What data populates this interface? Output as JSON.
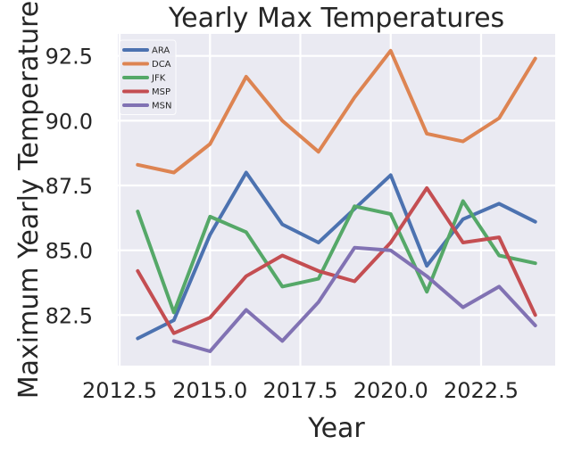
{
  "chart_data": {
    "type": "line",
    "title": "Yearly Max Temperatures",
    "xlabel": "Year",
    "ylabel": "Maximum Yearly Temperature",
    "xlim": [
      2012.45,
      2024.55
    ],
    "ylim": [
      80.55,
      93.35
    ],
    "xticks": [
      2012.5,
      2015.0,
      2017.5,
      2020.0,
      2022.5
    ],
    "xtick_labels": [
      "2012.5",
      "2015.0",
      "2017.5",
      "2020.0",
      "2022.5"
    ],
    "yticks": [
      82.5,
      85.0,
      87.5,
      90.0,
      92.5
    ],
    "ytick_labels": [
      "82.5",
      "85.0",
      "87.5",
      "90.0",
      "92.5"
    ],
    "grid": true,
    "legend_position": "top-left",
    "background": "#EAEAF2",
    "series": [
      {
        "name": "ARA",
        "color": "#4C72B0",
        "points": [
          [
            2013,
            81.6
          ],
          [
            2014,
            82.3
          ],
          [
            2015,
            85.6
          ],
          [
            2016,
            88.0
          ],
          [
            2017,
            86.0
          ],
          [
            2018,
            85.3
          ],
          [
            2019,
            86.6
          ],
          [
            2020,
            87.9
          ],
          [
            2021,
            84.4
          ],
          [
            2022,
            86.2
          ],
          [
            2023,
            86.8
          ],
          [
            2024,
            86.1
          ]
        ]
      },
      {
        "name": "DCA",
        "color": "#DD8452",
        "points": [
          [
            2013,
            88.3
          ],
          [
            2014,
            88.0
          ],
          [
            2015,
            89.1
          ],
          [
            2016,
            91.7
          ],
          [
            2017,
            90.0
          ],
          [
            2018,
            88.8
          ],
          [
            2019,
            90.9
          ],
          [
            2020,
            92.7
          ],
          [
            2021,
            89.5
          ],
          [
            2022,
            89.2
          ],
          [
            2023,
            90.1
          ],
          [
            2024,
            92.4
          ]
        ]
      },
      {
        "name": "JFK",
        "color": "#55A868",
        "points": [
          [
            2013,
            86.5
          ],
          [
            2014,
            82.6
          ],
          [
            2015,
            86.3
          ],
          [
            2016,
            85.7
          ],
          [
            2017,
            83.6
          ],
          [
            2018,
            83.9
          ],
          [
            2019,
            86.7
          ],
          [
            2020,
            86.4
          ],
          [
            2021,
            83.4
          ],
          [
            2022,
            86.9
          ],
          [
            2023,
            84.8
          ],
          [
            2024,
            84.5
          ]
        ]
      },
      {
        "name": "MSP",
        "color": "#C44E52",
        "points": [
          [
            2013,
            84.2
          ],
          [
            2014,
            81.8
          ],
          [
            2015,
            82.4
          ],
          [
            2016,
            84.0
          ],
          [
            2017,
            84.8
          ],
          [
            2018,
            84.2
          ],
          [
            2019,
            83.8
          ],
          [
            2020,
            85.3
          ],
          [
            2021,
            87.4
          ],
          [
            2022,
            85.3
          ],
          [
            2023,
            85.5
          ],
          [
            2024,
            82.5
          ]
        ]
      },
      {
        "name": "MSN",
        "color": "#8172B3",
        "points": [
          [
            2014,
            81.5
          ],
          [
            2015,
            81.1
          ],
          [
            2016,
            82.7
          ],
          [
            2017,
            81.5
          ],
          [
            2018,
            83.0
          ],
          [
            2019,
            85.1
          ],
          [
            2020,
            85.0
          ],
          [
            2021,
            84.0
          ],
          [
            2022,
            82.8
          ],
          [
            2023,
            83.6
          ],
          [
            2024,
            82.1
          ]
        ]
      }
    ]
  }
}
